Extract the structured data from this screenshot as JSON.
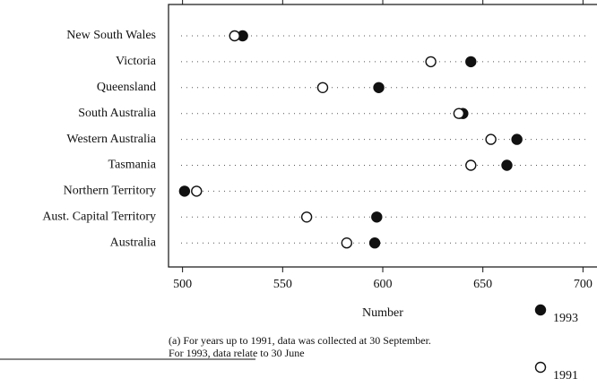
{
  "chart_data": {
    "type": "dot",
    "categories": [
      "New South Wales",
      "Victoria",
      "Queensland",
      "South Australia",
      "Western Australia",
      "Tasmania",
      "Northern Territory",
      "Aust. Capital Territory",
      "Australia"
    ],
    "series": [
      {
        "name": "1993",
        "color": "#111111",
        "fill": "filled",
        "values": [
          530,
          644,
          598,
          640,
          667,
          662,
          501,
          597,
          596
        ]
      },
      {
        "name": "1991",
        "color": "#111111",
        "fill": "open",
        "values": [
          526,
          624,
          570,
          638,
          654,
          644,
          507,
          562,
          582
        ]
      }
    ],
    "xlabel": "Number",
    "xlim": [
      493,
      707
    ],
    "xticks": [
      500,
      550,
      600,
      650,
      700
    ],
    "note": [
      "(a) For years up to 1991, data was collected at 30 September.",
      "For 1993, data relate to 30 June"
    ]
  }
}
